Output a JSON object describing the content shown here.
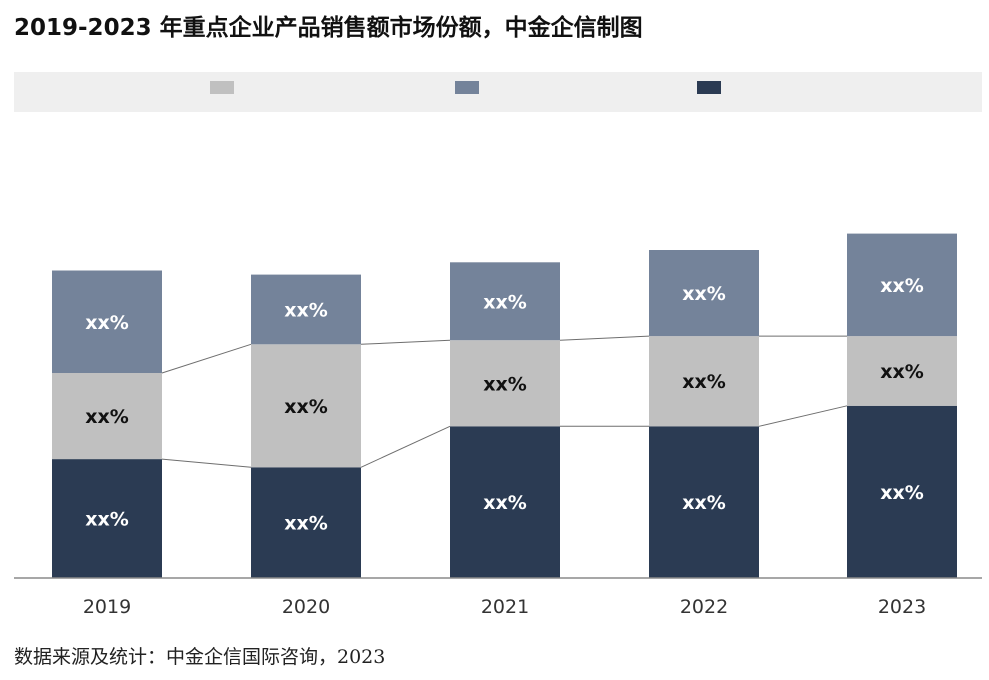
{
  "title": "2019-2023 年重点企业产品销售额市场份额，中金企信制图",
  "source": "数据来源及统计：中金企信国际咨询，2023",
  "chart_data": {
    "type": "bar",
    "stacked": true,
    "categories": [
      "2019",
      "2020",
      "2021",
      "2022",
      "2023"
    ],
    "series": [
      {
        "values": [
          29,
          27,
          37,
          37,
          42
        ],
        "color": "#2b3b53",
        "label_color": "#ffffff",
        "label": "xx%"
      },
      {
        "values": [
          21,
          30,
          21,
          22,
          17
        ],
        "color": "#c0c0c0",
        "label_color": "#111111",
        "label": "xx%"
      },
      {
        "values": [
          25,
          17,
          19,
          21,
          25
        ],
        "color": "#74839a",
        "label_color": "#ffffff",
        "label": "xx%"
      }
    ],
    "legend": {
      "position": "top"
    },
    "ylim": [
      0,
      100
    ],
    "grid": false
  }
}
